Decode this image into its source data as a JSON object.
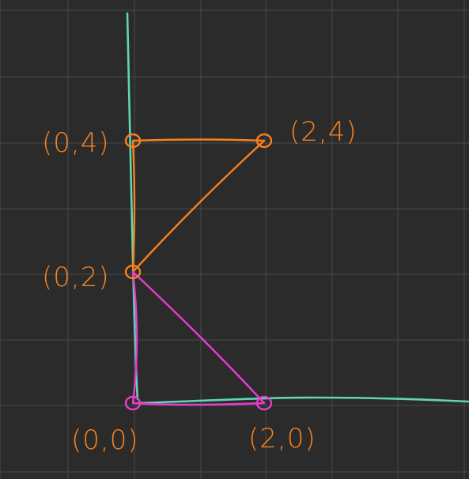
{
  "colors": {
    "background": "#2b2b2b",
    "grid": "#4a4a4a",
    "axis": "#5fd6b4",
    "orange": "#f7801f",
    "magenta": "#e83ccf"
  },
  "chart_data": {
    "type": "line",
    "title": "",
    "xlabel": "",
    "ylabel": "",
    "grid": true,
    "points": [
      {
        "x": 0,
        "y": 4,
        "label": "(0,4)",
        "color": "orange"
      },
      {
        "x": 2,
        "y": 4,
        "label": "(2,4)",
        "color": "orange"
      },
      {
        "x": 0,
        "y": 2,
        "label": "(0,2)",
        "color": "orange"
      },
      {
        "x": 0,
        "y": 0,
        "label": "(0,0)",
        "color": "magenta"
      },
      {
        "x": 2,
        "y": 0,
        "label": "(2,0)",
        "color": "magenta"
      }
    ],
    "series": [
      {
        "color": "orange",
        "points": [
          [
            0,
            4
          ],
          [
            2,
            4
          ],
          [
            0,
            2
          ],
          [
            0,
            4
          ]
        ]
      },
      {
        "color": "magenta",
        "points": [
          [
            0,
            2
          ],
          [
            2,
            0
          ],
          [
            0,
            0
          ],
          [
            0,
            2
          ]
        ]
      }
    ]
  }
}
